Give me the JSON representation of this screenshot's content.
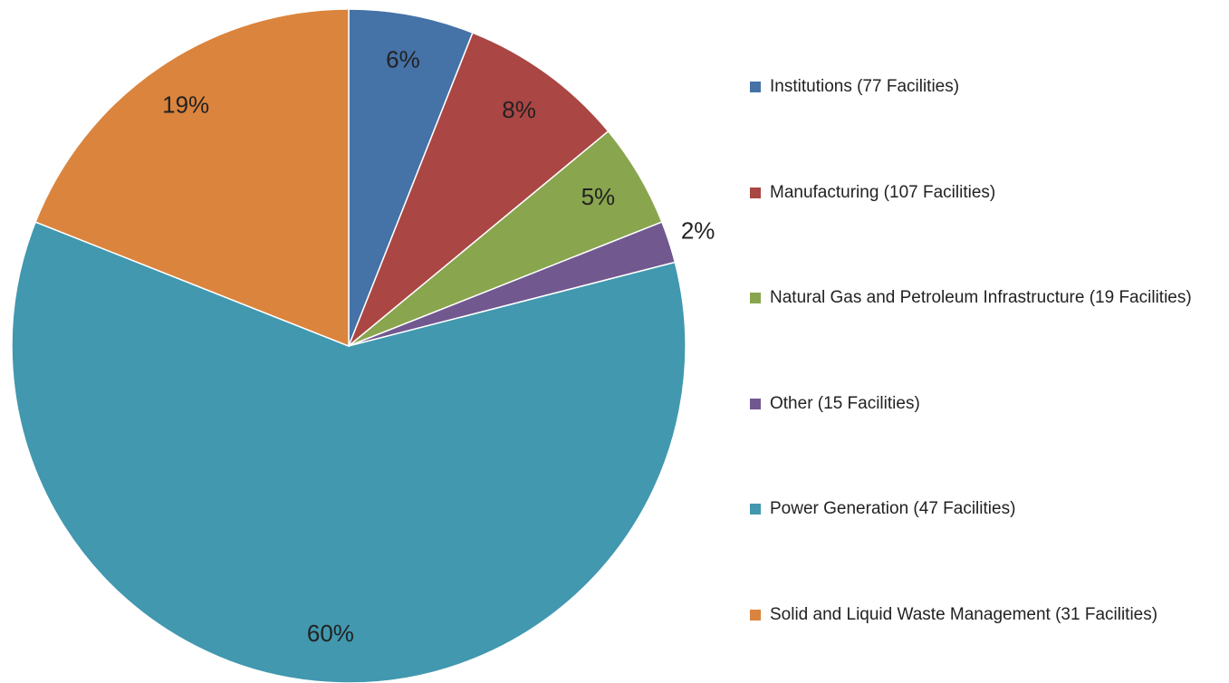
{
  "chart_data": {
    "type": "pie",
    "categories": [
      "Institutions (77 Facilities)",
      "Manufacturing (107 Facilities)",
      "Natural Gas and Petroleum Infrastructure (19 Facilities)",
      "Other (15 Facilities)",
      "Power Generation (47 Facilities)",
      "Solid and Liquid Waste Management (31 Facilities)"
    ],
    "values": [
      6,
      8,
      5,
      2,
      60,
      19
    ],
    "value_labels": [
      "6%",
      "8%",
      "5%",
      "2%",
      "60%",
      "19%"
    ],
    "colors": [
      "#4572a7",
      "#aa4643",
      "#89a54e",
      "#71588f",
      "#4198af",
      "#db843d"
    ],
    "legend": "right"
  }
}
